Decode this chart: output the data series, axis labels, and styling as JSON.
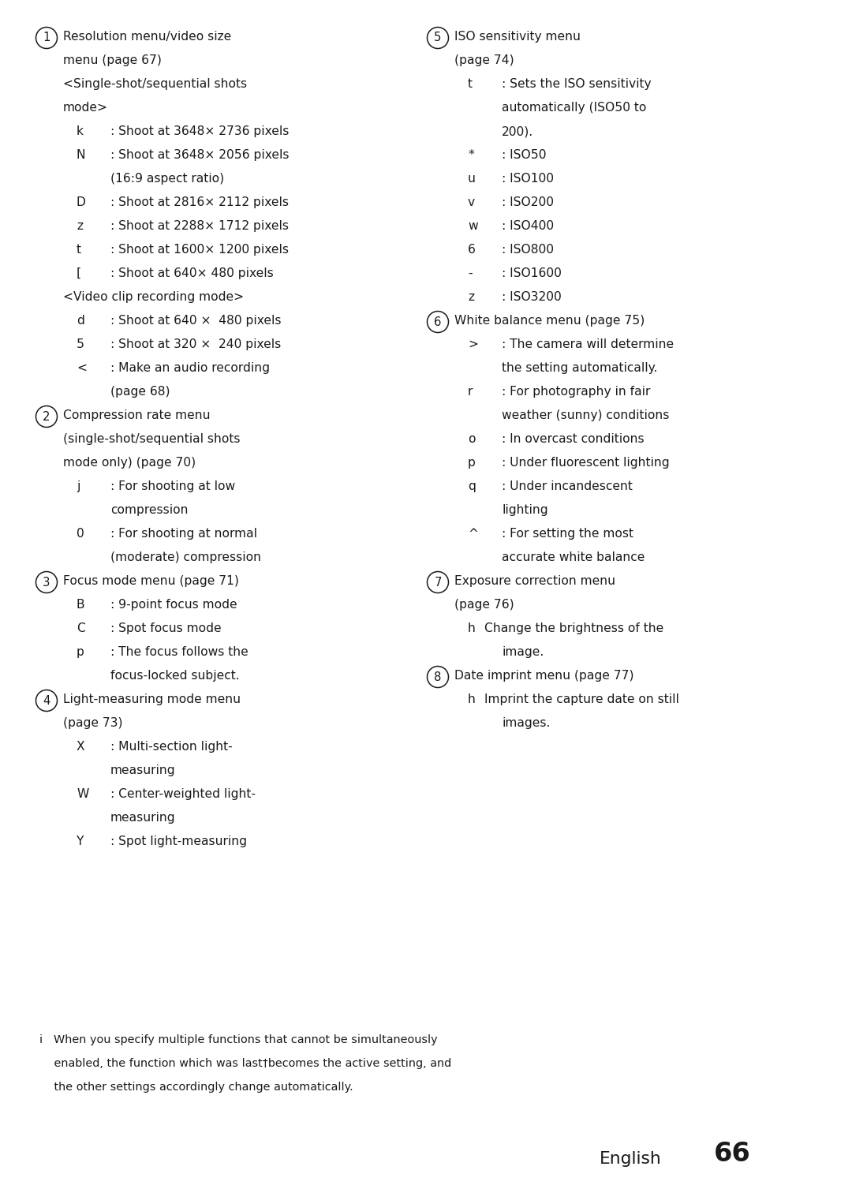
{
  "bg_color": "#ffffff",
  "text_color": "#1a1a1a",
  "font_size": 11.2,
  "left_lines": [
    {
      "indent": 0,
      "circle": "1",
      "text": "Resolution menu/video size"
    },
    {
      "indent": 1,
      "text": "menu (page 67)"
    },
    {
      "indent": 1,
      "text": "<Single-shot/sequential shots"
    },
    {
      "indent": 1,
      "text": "mode>"
    },
    {
      "indent": 2,
      "key": "k",
      "text": ": Shoot at 3648× 2736 pixels"
    },
    {
      "indent": 2,
      "key": "N",
      "text": ": Shoot at 3648× 2056 pixels"
    },
    {
      "indent": 3,
      "text": "(16:9 aspect ratio)"
    },
    {
      "indent": 2,
      "key": "D",
      "text": ": Shoot at 2816× 2112 pixels"
    },
    {
      "indent": 2,
      "key": "z",
      "text": ": Shoot at 2288× 1712 pixels"
    },
    {
      "indent": 2,
      "key": "t",
      "text": ": Shoot at 1600× 1200 pixels"
    },
    {
      "indent": 2,
      "key": "[",
      "text": ": Shoot at 640× 480 pixels"
    },
    {
      "indent": 1,
      "text": "<Video clip recording mode>"
    },
    {
      "indent": 2,
      "key": "d",
      "text": ": Shoot at 640 ×  480 pixels"
    },
    {
      "indent": 2,
      "key": "5",
      "text": ": Shoot at 320 ×  240 pixels"
    },
    {
      "indent": 2,
      "key": "<",
      "text": ": Make an audio recording"
    },
    {
      "indent": 3,
      "text": "(page 68)"
    },
    {
      "indent": 0,
      "circle": "2",
      "text": "Compression rate menu"
    },
    {
      "indent": 1,
      "text": "(single-shot/sequential shots"
    },
    {
      "indent": 1,
      "text": "mode only) (page 70)"
    },
    {
      "indent": 2,
      "key": "j",
      "text": ": For shooting at low"
    },
    {
      "indent": 3,
      "text": "compression"
    },
    {
      "indent": 2,
      "key": "0",
      "text": ": For shooting at normal"
    },
    {
      "indent": 3,
      "text": "(moderate) compression"
    },
    {
      "indent": 0,
      "circle": "3",
      "text": "Focus mode menu (page 71)"
    },
    {
      "indent": 2,
      "key": "B",
      "text": ": 9-point focus mode"
    },
    {
      "indent": 2,
      "key": "C",
      "text": ": Spot focus mode"
    },
    {
      "indent": 2,
      "key": "p",
      "text": ": The focus follows the"
    },
    {
      "indent": 3,
      "text": "focus-locked subject."
    },
    {
      "indent": 0,
      "circle": "4",
      "text": "Light-measuring mode menu"
    },
    {
      "indent": 1,
      "text": "(page 73)"
    },
    {
      "indent": 2,
      "key": "X",
      "text": ": Multi-section light-"
    },
    {
      "indent": 3,
      "text": "measuring"
    },
    {
      "indent": 2,
      "key": "W",
      "text": ": Center-weighted light-"
    },
    {
      "indent": 3,
      "text": "measuring"
    },
    {
      "indent": 2,
      "key": "Y",
      "text": ": Spot light-measuring"
    }
  ],
  "right_lines": [
    {
      "indent": 0,
      "circle": "5",
      "text": "ISO sensitivity menu"
    },
    {
      "indent": 1,
      "text": "(page 74)"
    },
    {
      "indent": 2,
      "key": "t",
      "text": ": Sets the ISO sensitivity"
    },
    {
      "indent": 3,
      "text": "automatically (ISO50 to"
    },
    {
      "indent": 3,
      "text": "200)."
    },
    {
      "indent": 2,
      "key": "*",
      "text": ": ISO50"
    },
    {
      "indent": 2,
      "key": "u",
      "text": ": ISO100"
    },
    {
      "indent": 2,
      "key": "v",
      "text": ": ISO200"
    },
    {
      "indent": 2,
      "key": "w",
      "text": ": ISO400"
    },
    {
      "indent": 2,
      "key": "6",
      "text": ": ISO800"
    },
    {
      "indent": 2,
      "key": "-",
      "text": ": ISO1600"
    },
    {
      "indent": 2,
      "key": "z",
      "text": ": ISO3200"
    },
    {
      "indent": 0,
      "circle": "6",
      "text": "White balance menu (page 75)"
    },
    {
      "indent": 2,
      "key": ">",
      "text": ": The camera will determine"
    },
    {
      "indent": 3,
      "text": "the setting automatically."
    },
    {
      "indent": 2,
      "key": "r",
      "text": ": For photography in fair"
    },
    {
      "indent": 3,
      "text": "weather (sunny) conditions"
    },
    {
      "indent": 2,
      "key": "o",
      "text": ": In overcast conditions"
    },
    {
      "indent": 2,
      "key": "p",
      "text": ": Under fluorescent lighting"
    },
    {
      "indent": 2,
      "key": "q",
      "text": ": Under incandescent"
    },
    {
      "indent": 3,
      "text": "lighting"
    },
    {
      "indent": 2,
      "key": "^",
      "text": ": For setting the most"
    },
    {
      "indent": 3,
      "text": "accurate white balance"
    },
    {
      "indent": 0,
      "circle": "7",
      "text": "Exposure correction menu"
    },
    {
      "indent": 1,
      "text": "(page 76)"
    },
    {
      "indent": 2,
      "key": "h",
      "text": "Change the brightness of the",
      "nocolon": true
    },
    {
      "indent": 3,
      "text": "image."
    },
    {
      "indent": 0,
      "circle": "8",
      "text": "Date imprint menu (page 77)"
    },
    {
      "indent": 2,
      "key": "h",
      "text": "Imprint the capture date on still",
      "nocolon": true
    },
    {
      "indent": 3,
      "text": "images."
    }
  ],
  "footer_line1": "i   When you specify multiple functions that cannot be simultaneously",
  "footer_line2": "    enabled, the function which was last†becomes the active setting, and",
  "footer_line3": "    the other settings accordingly change automatically.",
  "page_label": "English",
  "page_num": "66"
}
